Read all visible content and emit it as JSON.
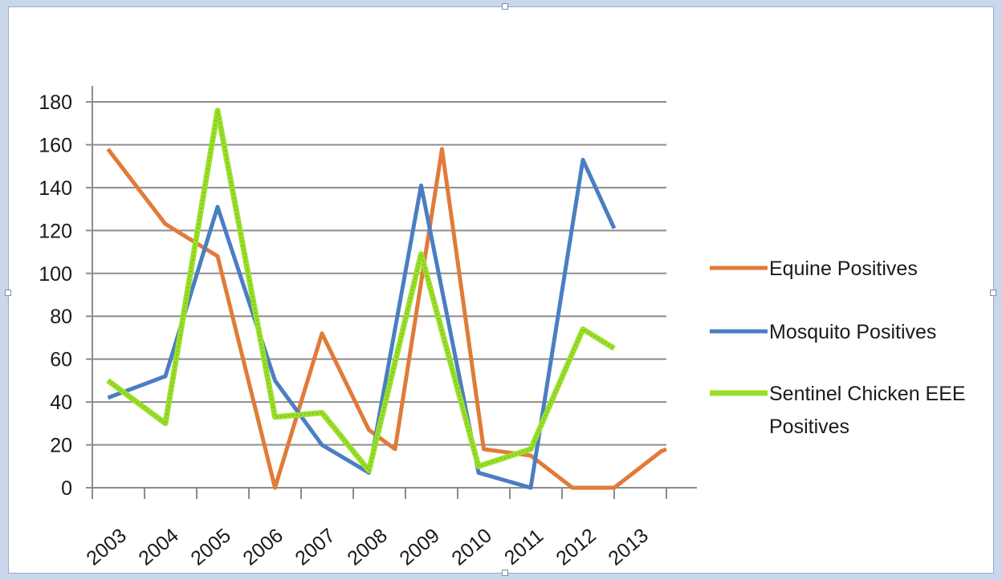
{
  "chart_data": {
    "type": "line",
    "title": "",
    "xlabel": "",
    "ylabel": "",
    "categories": [
      "2003",
      "2004",
      "2005",
      "2006",
      "2007",
      "2008",
      "2009",
      "2010",
      "2011",
      "2012",
      "2013"
    ],
    "ylim": [
      0,
      180
    ],
    "yticks": [
      "0",
      "20",
      "40",
      "60",
      "80",
      "100",
      "120",
      "140",
      "160",
      "180"
    ],
    "grid": true,
    "legend_position": "right",
    "series": [
      {
        "name": "Equine Positives",
        "color": "#e07b39",
        "x": [
          0.3,
          1.4,
          2.4,
          3.5,
          4.4,
          5.3,
          5.8,
          6.7,
          7.5,
          8.4,
          9.2,
          10.0,
          10.9,
          11.0
        ],
        "values": [
          158,
          123,
          108,
          0,
          72,
          27,
          18,
          158,
          18,
          15,
          0,
          0,
          17,
          18
        ]
      },
      {
        "name": "Mosquito Positives",
        "color": "#4a7ec1",
        "x": [
          0.3,
          1.4,
          2.4,
          3.5,
          4.4,
          5.3,
          6.3,
          7.4,
          8.4,
          9.4,
          10.0
        ],
        "values": [
          42,
          52,
          131,
          50,
          20,
          7,
          141,
          7,
          0,
          153,
          121
        ]
      },
      {
        "name": "Sentinel Chicken EEE Positives",
        "color": "#9adf2a",
        "x": [
          0.3,
          1.4,
          2.4,
          3.5,
          4.4,
          5.3,
          6.3,
          7.4,
          8.4,
          9.4,
          10.0
        ],
        "values": [
          50,
          30,
          176,
          33,
          35,
          8,
          109,
          10,
          18,
          74,
          65
        ]
      }
    ],
    "legend": [
      "Equine Positives",
      "Mosquito Positives",
      "Sentinel Chicken EEE",
      "Positives"
    ]
  }
}
